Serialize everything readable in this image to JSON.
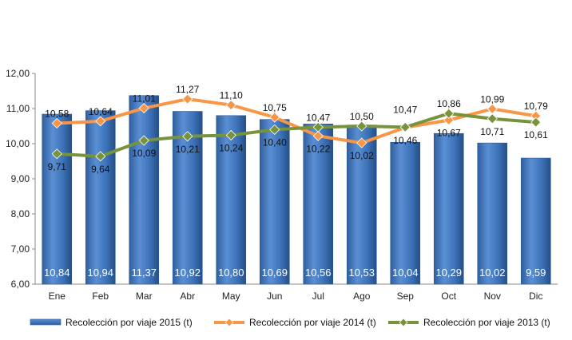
{
  "chart_data": {
    "type": "bar",
    "categories": [
      "Ene",
      "Feb",
      "Mar",
      "Abr",
      "May",
      "Jun",
      "Jul",
      "Ago",
      "Sep",
      "Oct",
      "Nov",
      "Dic"
    ],
    "ylim": [
      6,
      12
    ],
    "yticks": [
      "6,00",
      "7,00",
      "8,00",
      "9,00",
      "10,00",
      "11,00",
      "12,00"
    ],
    "grid": false,
    "legend_position": "bottom",
    "series": [
      {
        "name": "Recolección por viaje 2015 (t)",
        "kind": "bar",
        "color": "#4f81bd",
        "values": [
          10.84,
          10.94,
          11.37,
          10.92,
          10.8,
          10.69,
          10.56,
          10.53,
          10.04,
          10.29,
          10.02,
          9.59
        ],
        "labels": [
          "10,84",
          "10,94",
          "11,37",
          "10,92",
          "10,80",
          "10,69",
          "10,56",
          "10,53",
          "10,04",
          "10,29",
          "10,02",
          "9,59"
        ]
      },
      {
        "name": "Recolección por viaje 2014 (t)",
        "kind": "line",
        "color": "#f79646",
        "values": [
          10.58,
          10.64,
          11.01,
          11.27,
          11.1,
          10.75,
          10.22,
          10.02,
          10.46,
          10.67,
          10.99,
          10.79
        ],
        "labels": [
          "10,58",
          "10,64",
          "11,01",
          "11,27",
          "11,10",
          "10,75",
          "10,22",
          "10,02",
          "10,46",
          "10,67",
          "10,99",
          "10,79"
        ]
      },
      {
        "name": "Recolección por viaje 2013 (t)",
        "kind": "line",
        "color": "#77933c",
        "values": [
          9.71,
          9.64,
          10.09,
          10.21,
          10.24,
          10.4,
          10.47,
          10.5,
          10.47,
          10.86,
          10.71,
          10.61
        ],
        "labels": [
          "9,71",
          "9,64",
          "10,09",
          "10,21",
          "10,24",
          "10,40",
          "10,47",
          "10,50",
          "10,47",
          "10,86",
          "10,71",
          "10,61"
        ]
      }
    ]
  }
}
